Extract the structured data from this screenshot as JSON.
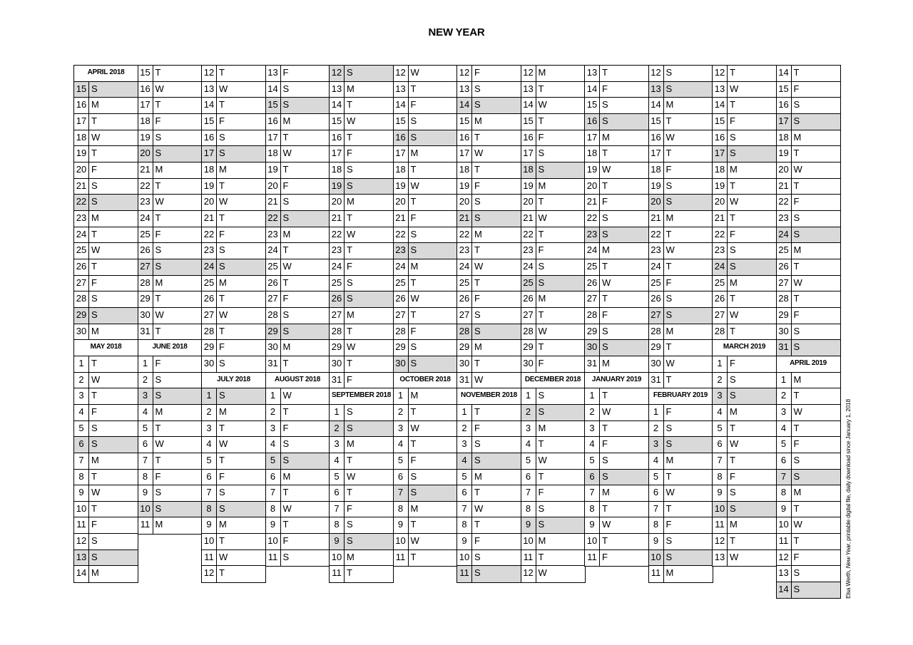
{
  "title": "NEW YEAR",
  "credit": {
    "author": "Elsa Werth, ",
    "work": "New Year",
    "rest": ", printable digital file, daily download since January 1, 2018"
  },
  "colors": {
    "sunday_shade": "#d9d9d9",
    "grid": "#000000"
  },
  "columns": [
    [
      {
        "h": "APRIL 2018"
      },
      [
        15,
        "S",
        1
      ],
      [
        16,
        "M"
      ],
      [
        17,
        "T"
      ],
      [
        18,
        "W"
      ],
      [
        19,
        "T"
      ],
      [
        20,
        "F"
      ],
      [
        21,
        "S"
      ],
      [
        22,
        "S",
        1
      ],
      [
        23,
        "M"
      ],
      [
        24,
        "T"
      ],
      [
        25,
        "W"
      ],
      [
        26,
        "T"
      ],
      [
        27,
        "F"
      ],
      [
        28,
        "S"
      ],
      [
        29,
        "S",
        1
      ],
      [
        30,
        "M"
      ],
      {
        "h": "MAY 2018"
      },
      [
        1,
        "T"
      ],
      [
        2,
        "W"
      ],
      [
        3,
        "T"
      ],
      [
        4,
        "F"
      ],
      [
        5,
        "S"
      ],
      [
        6,
        "S",
        1
      ],
      [
        7,
        "M"
      ],
      [
        8,
        "T"
      ],
      [
        9,
        "W"
      ],
      [
        10,
        "T"
      ],
      [
        11,
        "F"
      ],
      [
        12,
        "S"
      ],
      [
        13,
        "S",
        1
      ],
      [
        14,
        "M"
      ]
    ],
    [
      [
        15,
        "T"
      ],
      [
        16,
        "W"
      ],
      [
        17,
        "T"
      ],
      [
        18,
        "F"
      ],
      [
        19,
        "S"
      ],
      [
        20,
        "S",
        1
      ],
      [
        21,
        "M"
      ],
      [
        22,
        "T"
      ],
      [
        23,
        "W"
      ],
      [
        24,
        "T"
      ],
      [
        25,
        "F"
      ],
      [
        26,
        "S"
      ],
      [
        27,
        "S",
        1
      ],
      [
        28,
        "M"
      ],
      [
        29,
        "T"
      ],
      [
        30,
        "W"
      ],
      [
        31,
        "T"
      ],
      {
        "h": "JUNE 2018"
      },
      [
        1,
        "F"
      ],
      [
        2,
        "S"
      ],
      [
        3,
        "S",
        1
      ],
      [
        4,
        "M"
      ],
      [
        5,
        "T"
      ],
      [
        6,
        "W"
      ],
      [
        7,
        "T"
      ],
      [
        8,
        "F"
      ],
      [
        9,
        "S"
      ],
      [
        10,
        "S",
        1
      ],
      [
        11,
        "M"
      ]
    ],
    [
      [
        12,
        "T"
      ],
      [
        13,
        "W"
      ],
      [
        14,
        "T"
      ],
      [
        15,
        "F"
      ],
      [
        16,
        "S"
      ],
      [
        17,
        "S",
        1
      ],
      [
        18,
        "M"
      ],
      [
        19,
        "T"
      ],
      [
        20,
        "W"
      ],
      [
        21,
        "T"
      ],
      [
        22,
        "F"
      ],
      [
        23,
        "S"
      ],
      [
        24,
        "S",
        1
      ],
      [
        25,
        "M"
      ],
      [
        26,
        "T"
      ],
      [
        27,
        "W"
      ],
      [
        28,
        "T"
      ],
      [
        29,
        "F"
      ],
      [
        30,
        "S"
      ],
      {
        "h": "JULY 2018"
      },
      [
        1,
        "S",
        1
      ],
      [
        2,
        "M"
      ],
      [
        3,
        "T"
      ],
      [
        4,
        "W"
      ],
      [
        5,
        "T"
      ],
      [
        6,
        "F"
      ],
      [
        7,
        "S"
      ],
      [
        8,
        "S",
        1
      ],
      [
        9,
        "M"
      ],
      [
        10,
        "T"
      ],
      [
        11,
        "W"
      ],
      [
        12,
        "T"
      ]
    ],
    [
      [
        13,
        "F"
      ],
      [
        14,
        "S"
      ],
      [
        15,
        "S",
        1
      ],
      [
        16,
        "M"
      ],
      [
        17,
        "T"
      ],
      [
        18,
        "W"
      ],
      [
        19,
        "T"
      ],
      [
        20,
        "F"
      ],
      [
        21,
        "S"
      ],
      [
        22,
        "S",
        1
      ],
      [
        23,
        "M"
      ],
      [
        24,
        "T"
      ],
      [
        25,
        "W"
      ],
      [
        26,
        "T"
      ],
      [
        27,
        "F"
      ],
      [
        28,
        "S"
      ],
      [
        29,
        "S",
        1
      ],
      [
        30,
        "M"
      ],
      [
        31,
        "T"
      ],
      {
        "h": "AUGUST 2018"
      },
      [
        1,
        "W"
      ],
      [
        2,
        "T"
      ],
      [
        3,
        "F"
      ],
      [
        4,
        "S"
      ],
      [
        5,
        "S",
        1
      ],
      [
        6,
        "M"
      ],
      [
        7,
        "T"
      ],
      [
        8,
        "W"
      ],
      [
        9,
        "T"
      ],
      [
        10,
        "F"
      ],
      [
        11,
        "S"
      ]
    ],
    [
      [
        12,
        "S",
        1
      ],
      [
        13,
        "M"
      ],
      [
        14,
        "T"
      ],
      [
        15,
        "W"
      ],
      [
        16,
        "T"
      ],
      [
        17,
        "F"
      ],
      [
        18,
        "S"
      ],
      [
        19,
        "S",
        1
      ],
      [
        20,
        "M"
      ],
      [
        21,
        "T"
      ],
      [
        22,
        "W"
      ],
      [
        23,
        "T"
      ],
      [
        24,
        "F"
      ],
      [
        25,
        "S"
      ],
      [
        26,
        "S",
        1
      ],
      [
        27,
        "M"
      ],
      [
        28,
        "T"
      ],
      [
        29,
        "W"
      ],
      [
        30,
        "T"
      ],
      [
        31,
        "F"
      ],
      {
        "h": "SEPTEMBER 2018"
      },
      [
        1,
        "S"
      ],
      [
        2,
        "S",
        1
      ],
      [
        3,
        "M"
      ],
      [
        4,
        "T"
      ],
      [
        5,
        "W"
      ],
      [
        6,
        "T"
      ],
      [
        7,
        "F"
      ],
      [
        8,
        "S"
      ],
      [
        9,
        "S",
        1
      ],
      [
        10,
        "M"
      ],
      [
        11,
        "T"
      ]
    ],
    [
      [
        12,
        "W"
      ],
      [
        13,
        "T"
      ],
      [
        14,
        "F"
      ],
      [
        15,
        "S"
      ],
      [
        16,
        "S",
        1
      ],
      [
        17,
        "M"
      ],
      [
        18,
        "T"
      ],
      [
        19,
        "W"
      ],
      [
        20,
        "T"
      ],
      [
        21,
        "F"
      ],
      [
        22,
        "S"
      ],
      [
        23,
        "S",
        1
      ],
      [
        24,
        "M"
      ],
      [
        25,
        "T"
      ],
      [
        26,
        "W"
      ],
      [
        27,
        "T"
      ],
      [
        28,
        "F"
      ],
      [
        29,
        "S"
      ],
      [
        30,
        "S",
        1
      ],
      {
        "h": "OCTOBER 2018"
      },
      [
        1,
        "M"
      ],
      [
        2,
        "T"
      ],
      [
        3,
        "W"
      ],
      [
        4,
        "T"
      ],
      [
        5,
        "F"
      ],
      [
        6,
        "S"
      ],
      [
        7,
        "S",
        1
      ],
      [
        8,
        "M"
      ],
      [
        9,
        "T"
      ],
      [
        10,
        "W"
      ],
      [
        11,
        "T"
      ]
    ],
    [
      [
        12,
        "F"
      ],
      [
        13,
        "S"
      ],
      [
        14,
        "S",
        1
      ],
      [
        15,
        "M"
      ],
      [
        16,
        "T"
      ],
      [
        17,
        "W"
      ],
      [
        18,
        "T"
      ],
      [
        19,
        "F"
      ],
      [
        20,
        "S"
      ],
      [
        21,
        "S",
        1
      ],
      [
        22,
        "M"
      ],
      [
        23,
        "T"
      ],
      [
        24,
        "W"
      ],
      [
        25,
        "T"
      ],
      [
        26,
        "F"
      ],
      [
        27,
        "S"
      ],
      [
        28,
        "S",
        1
      ],
      [
        29,
        "M"
      ],
      [
        30,
        "T"
      ],
      [
        31,
        "W"
      ],
      {
        "h": "NOVEMBER 2018"
      },
      [
        1,
        "T"
      ],
      [
        2,
        "F"
      ],
      [
        3,
        "S"
      ],
      [
        4,
        "S",
        1
      ],
      [
        5,
        "M"
      ],
      [
        6,
        "T"
      ],
      [
        7,
        "W"
      ],
      [
        8,
        "T"
      ],
      [
        9,
        "F"
      ],
      [
        10,
        "S"
      ],
      [
        11,
        "S",
        1
      ]
    ],
    [
      [
        12,
        "M"
      ],
      [
        13,
        "T"
      ],
      [
        14,
        "W"
      ],
      [
        15,
        "T"
      ],
      [
        16,
        "F"
      ],
      [
        17,
        "S"
      ],
      [
        18,
        "S",
        1
      ],
      [
        19,
        "M"
      ],
      [
        20,
        "T"
      ],
      [
        21,
        "W"
      ],
      [
        22,
        "T"
      ],
      [
        23,
        "F"
      ],
      [
        24,
        "S"
      ],
      [
        25,
        "S",
        1
      ],
      [
        26,
        "M"
      ],
      [
        27,
        "T"
      ],
      [
        28,
        "W"
      ],
      [
        29,
        "T"
      ],
      [
        30,
        "F"
      ],
      {
        "h": "DECEMBER 2018"
      },
      [
        1,
        "S"
      ],
      [
        2,
        "S",
        1
      ],
      [
        3,
        "M"
      ],
      [
        4,
        "T"
      ],
      [
        5,
        "W"
      ],
      [
        6,
        "T"
      ],
      [
        7,
        "F"
      ],
      [
        8,
        "S"
      ],
      [
        9,
        "S",
        1
      ],
      [
        10,
        "M"
      ],
      [
        11,
        "T"
      ],
      [
        12,
        "W"
      ]
    ],
    [
      [
        13,
        "T"
      ],
      [
        14,
        "F"
      ],
      [
        15,
        "S"
      ],
      [
        16,
        "S",
        1
      ],
      [
        17,
        "M"
      ],
      [
        18,
        "T"
      ],
      [
        19,
        "W"
      ],
      [
        20,
        "T"
      ],
      [
        21,
        "F"
      ],
      [
        22,
        "S"
      ],
      [
        23,
        "S",
        1
      ],
      [
        24,
        "M"
      ],
      [
        25,
        "T"
      ],
      [
        26,
        "W"
      ],
      [
        27,
        "T"
      ],
      [
        28,
        "F"
      ],
      [
        29,
        "S"
      ],
      [
        30,
        "S",
        1
      ],
      [
        31,
        "M"
      ],
      {
        "h": "JANUARY 2019"
      },
      [
        1,
        "T"
      ],
      [
        2,
        "W"
      ],
      [
        3,
        "T"
      ],
      [
        4,
        "F"
      ],
      [
        5,
        "S"
      ],
      [
        6,
        "S",
        1
      ],
      [
        7,
        "M"
      ],
      [
        8,
        "T"
      ],
      [
        9,
        "W"
      ],
      [
        10,
        "T"
      ],
      [
        11,
        "F"
      ]
    ],
    [
      [
        12,
        "S"
      ],
      [
        13,
        "S",
        1
      ],
      [
        14,
        "M"
      ],
      [
        15,
        "T"
      ],
      [
        16,
        "W"
      ],
      [
        17,
        "T"
      ],
      [
        18,
        "F"
      ],
      [
        19,
        "S"
      ],
      [
        20,
        "S",
        1
      ],
      [
        21,
        "M"
      ],
      [
        22,
        "T"
      ],
      [
        23,
        "W"
      ],
      [
        24,
        "T"
      ],
      [
        25,
        "F"
      ],
      [
        26,
        "S"
      ],
      [
        27,
        "S",
        1
      ],
      [
        28,
        "M"
      ],
      [
        29,
        "T"
      ],
      [
        30,
        "W"
      ],
      [
        31,
        "T"
      ],
      {
        "h": "FEBRUARY 2019"
      },
      [
        1,
        "F"
      ],
      [
        2,
        "S"
      ],
      [
        3,
        "S",
        1
      ],
      [
        4,
        "M"
      ],
      [
        5,
        "T"
      ],
      [
        6,
        "W"
      ],
      [
        7,
        "T"
      ],
      [
        8,
        "F"
      ],
      [
        9,
        "S"
      ],
      [
        10,
        "S",
        1
      ],
      [
        11,
        "M"
      ]
    ],
    [
      [
        12,
        "T"
      ],
      [
        13,
        "W"
      ],
      [
        14,
        "T"
      ],
      [
        15,
        "F"
      ],
      [
        16,
        "S"
      ],
      [
        17,
        "S",
        1
      ],
      [
        18,
        "M"
      ],
      [
        19,
        "T"
      ],
      [
        20,
        "W"
      ],
      [
        21,
        "T"
      ],
      [
        22,
        "F"
      ],
      [
        23,
        "S"
      ],
      [
        24,
        "S",
        1
      ],
      [
        25,
        "M"
      ],
      [
        26,
        "T"
      ],
      [
        27,
        "W"
      ],
      [
        28,
        "T"
      ],
      {
        "h": "MARCH 2019"
      },
      [
        1,
        "F"
      ],
      [
        2,
        "S"
      ],
      [
        3,
        "S",
        1
      ],
      [
        4,
        "M"
      ],
      [
        5,
        "T"
      ],
      [
        6,
        "W"
      ],
      [
        7,
        "T"
      ],
      [
        8,
        "F"
      ],
      [
        9,
        "S"
      ],
      [
        10,
        "S",
        1
      ],
      [
        11,
        "M"
      ],
      [
        12,
        "T"
      ],
      [
        13,
        "W"
      ]
    ],
    [
      [
        14,
        "T"
      ],
      [
        15,
        "F"
      ],
      [
        16,
        "S"
      ],
      [
        17,
        "S",
        1
      ],
      [
        18,
        "M"
      ],
      [
        19,
        "T"
      ],
      [
        20,
        "W"
      ],
      [
        21,
        "T"
      ],
      [
        22,
        "F"
      ],
      [
        23,
        "S"
      ],
      [
        24,
        "S",
        1
      ],
      [
        25,
        "M"
      ],
      [
        26,
        "T"
      ],
      [
        27,
        "W"
      ],
      [
        28,
        "T"
      ],
      [
        29,
        "F"
      ],
      [
        30,
        "S"
      ],
      [
        31,
        "S",
        1
      ],
      {
        "h": "APRIL 2019"
      },
      [
        1,
        "M"
      ],
      [
        2,
        "T"
      ],
      [
        3,
        "W"
      ],
      [
        4,
        "T"
      ],
      [
        5,
        "F"
      ],
      [
        6,
        "S"
      ],
      [
        7,
        "S",
        1
      ],
      [
        8,
        "M"
      ],
      [
        9,
        "T"
      ],
      [
        10,
        "W"
      ],
      [
        11,
        "T"
      ],
      [
        12,
        "F"
      ],
      [
        13,
        "S"
      ],
      [
        14,
        "S",
        1
      ]
    ]
  ]
}
